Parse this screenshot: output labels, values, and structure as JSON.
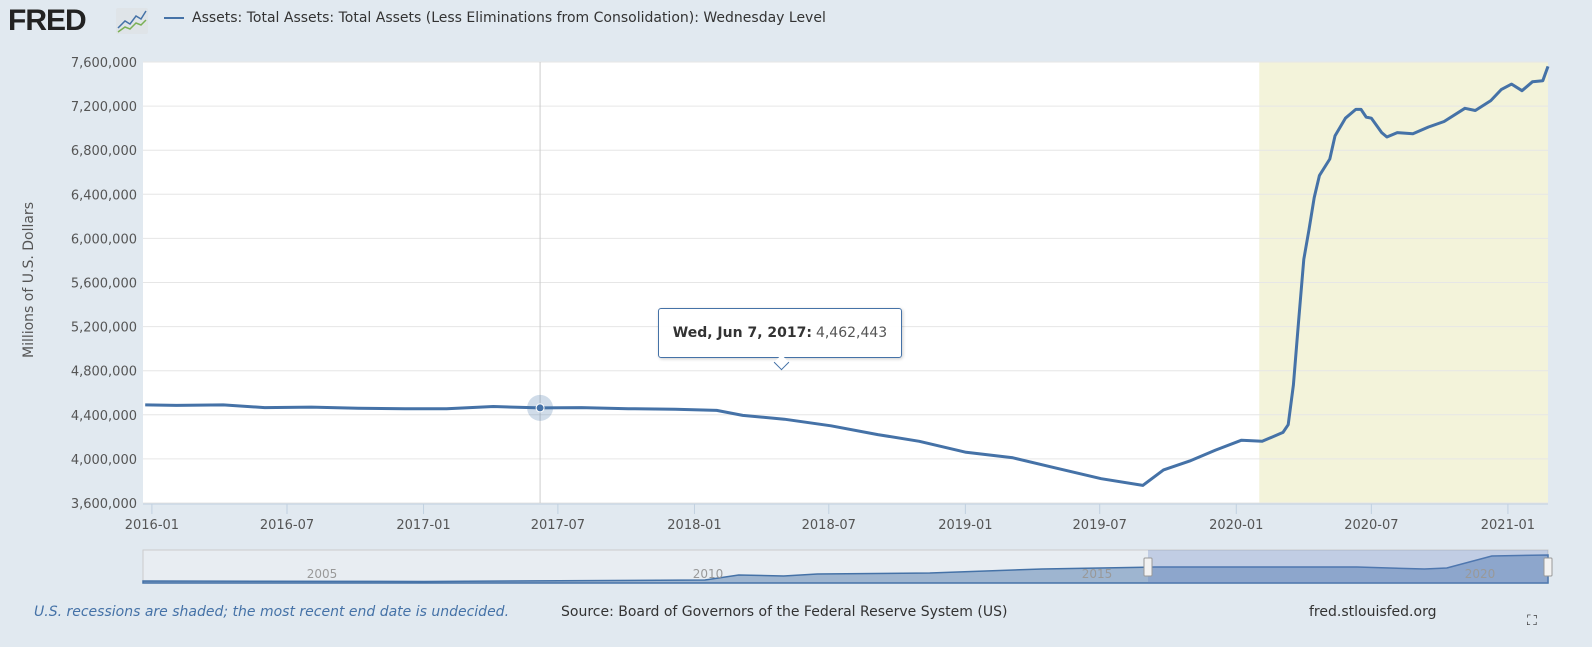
{
  "header": {
    "logo_text": "FRED",
    "legend_label": "Assets: Total Assets: Total Assets (Less Eliminations from Consolidation): Wednesday Level"
  },
  "tooltip": {
    "date": "Wed, Jun 7, 2017:",
    "value": "4,462,443"
  },
  "footer": {
    "note": "U.S. recessions are shaded; the most recent end date is undecided.",
    "source": "Source: Board of Governors of the Federal Reserve System (US)",
    "site": "fred.stlouisfed.org",
    "fullscreen_icon": "expand-icon"
  },
  "chart_data": {
    "type": "line",
    "title": "",
    "ylabel": "Millions of U.S. Dollars",
    "xlabel": "",
    "ylim": [
      3600000,
      7600000
    ],
    "xlim": [
      "2015-12-20",
      "2021-02-24"
    ],
    "yticks": [
      "3,600,000",
      "4,000,000",
      "4,400,000",
      "4,800,000",
      "5,200,000",
      "5,600,000",
      "6,000,000",
      "6,400,000",
      "6,800,000",
      "7,200,000",
      "7,600,000"
    ],
    "xticks": [
      "2016-01",
      "2016-07",
      "2017-01",
      "2017-07",
      "2018-01",
      "2018-07",
      "2019-01",
      "2019-07",
      "2020-01",
      "2020-07",
      "2021-01"
    ],
    "grid": true,
    "line_color": "#4572a7",
    "recession_color": "#f3f3da",
    "recessions": [
      {
        "start": "2020-02-01",
        "end": "2021-02-24"
      }
    ],
    "highlight": {
      "x": "2017-06-07",
      "y": 4462443
    },
    "series": [
      {
        "name": "Assets: Total Assets: Total Assets (Less Eliminations from Consolidation): Wednesday Level",
        "x": [
          "2015-12-23",
          "2016-02-03",
          "2016-04-06",
          "2016-06-01",
          "2016-08-03",
          "2016-10-05",
          "2016-12-07",
          "2017-02-01",
          "2017-04-05",
          "2017-06-07",
          "2017-08-02",
          "2017-10-04",
          "2017-12-06",
          "2018-01-31",
          "2018-03-07",
          "2018-05-02",
          "2018-07-04",
          "2018-09-05",
          "2018-10-31",
          "2019-01-02",
          "2019-03-06",
          "2019-05-01",
          "2019-07-03",
          "2019-08-28",
          "2019-09-25",
          "2019-10-30",
          "2019-12-04",
          "2020-01-08",
          "2020-02-05",
          "2020-03-04",
          "2020-03-11",
          "2020-03-18",
          "2020-03-25",
          "2020-04-01",
          "2020-04-08",
          "2020-04-15",
          "2020-04-22",
          "2020-05-06",
          "2020-05-13",
          "2020-05-27",
          "2020-06-10",
          "2020-06-17",
          "2020-06-24",
          "2020-07-01",
          "2020-07-15",
          "2020-07-22",
          "2020-08-05",
          "2020-08-26",
          "2020-09-16",
          "2020-10-07",
          "2020-11-04",
          "2020-11-18",
          "2020-12-09",
          "2020-12-23",
          "2021-01-06",
          "2021-01-20",
          "2021-02-03",
          "2021-02-17",
          "2021-02-24"
        ],
        "values": [
          4490000,
          4485000,
          4490000,
          4465000,
          4470000,
          4460000,
          4455000,
          4455000,
          4475000,
          4462443,
          4465000,
          4455000,
          4450000,
          4440000,
          4395000,
          4360000,
          4300000,
          4220000,
          4160000,
          4060000,
          4010000,
          3920000,
          3820000,
          3760000,
          3900000,
          3980000,
          4080000,
          4170000,
          4160000,
          4240000,
          4310000,
          4670000,
          5250000,
          5810000,
          6080000,
          6370000,
          6570000,
          6720000,
          6930000,
          7090000,
          7170000,
          7170000,
          7100000,
          7090000,
          6960000,
          6920000,
          6960000,
          6950000,
          7010000,
          7060000,
          7180000,
          7160000,
          7250000,
          7350000,
          7400000,
          7340000,
          7420000,
          7430000,
          7560000
        ]
      }
    ],
    "navigator": {
      "labels": [
        "2005",
        "2010",
        "2015",
        "2020"
      ],
      "selected_range": [
        "2015-12-20",
        "2021-02-24"
      ]
    }
  }
}
